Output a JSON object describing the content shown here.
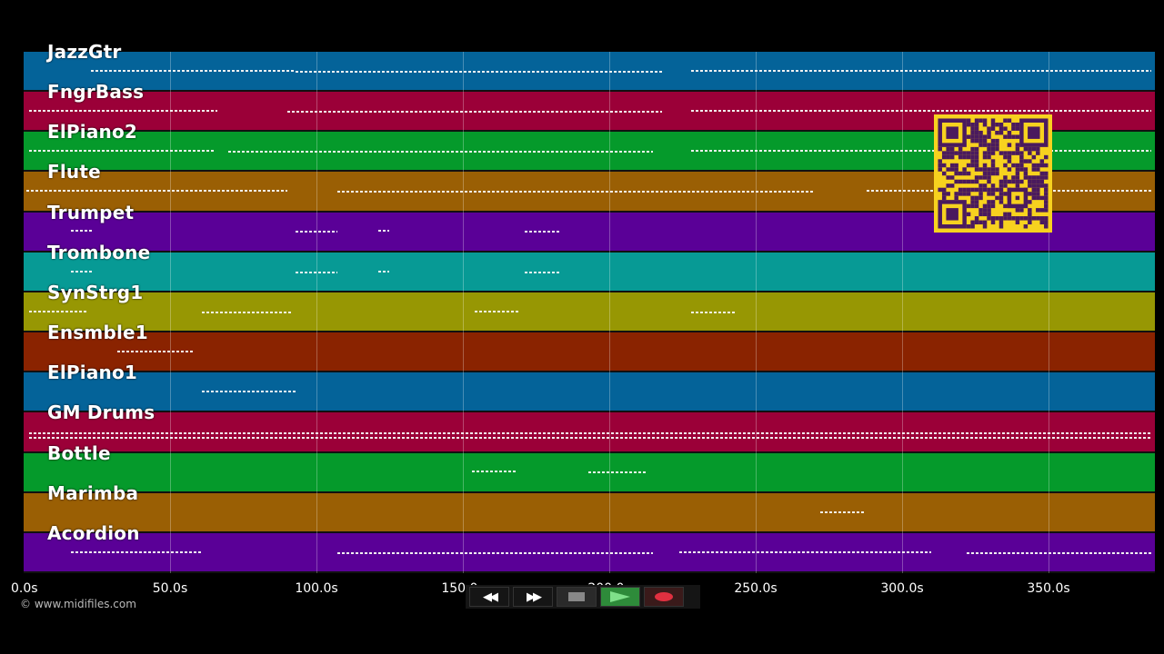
{
  "tracks": [
    {
      "name": "JazzGtr",
      "color": "#046399"
    },
    {
      "name": "FngrBass",
      "color": "#9b0038"
    },
    {
      "name": "ElPiano2",
      "color": "#059a2b"
    },
    {
      "name": "Flute",
      "color": "#9a5f04"
    },
    {
      "name": "Trumpet",
      "color": "#5a0097"
    },
    {
      "name": "Trombone",
      "color": "#079a95"
    },
    {
      "name": "SynStrg1",
      "color": "#979703"
    },
    {
      "name": "Ensmble1",
      "color": "#8a2300"
    },
    {
      "name": "ElPiano1",
      "color": "#046399"
    },
    {
      "name": "GM Drums",
      "color": "#9b0038"
    },
    {
      "name": "Bottle",
      "color": "#059a2b"
    },
    {
      "name": "Marimba",
      "color": "#9a5f04"
    },
    {
      "name": "Acordion",
      "color": "#5a0097"
    }
  ],
  "axis": {
    "ticks": [
      "0.0s",
      "50.0s",
      "100.0s",
      "150.0s",
      "200.0s",
      "250.0s",
      "300.0s",
      "350.0s"
    ],
    "tick_values": [
      0,
      50,
      100,
      150,
      200,
      250,
      300,
      350
    ],
    "max_seconds": 386
  },
  "copyright": "© www.midifiles.com",
  "transport": {
    "rewind_label": "◀◀",
    "forward_label": "▶▶"
  },
  "colors": {
    "background": "#000000",
    "qr_bg": "#f7d21f",
    "qr_fg": "#4a1a5e",
    "play": "#2e8b3a",
    "record": "#e03040"
  },
  "notes": [
    {
      "track": 0,
      "segments": [
        [
          23,
          93
        ],
        [
          93,
          218
        ],
        [
          228,
          385
        ]
      ]
    },
    {
      "track": 1,
      "segments": [
        [
          2,
          66
        ],
        [
          90,
          218
        ],
        [
          228,
          385
        ]
      ]
    },
    {
      "track": 2,
      "segments": [
        [
          2,
          65
        ],
        [
          70,
          215
        ],
        [
          228,
          385
        ]
      ]
    },
    {
      "track": 3,
      "segments": [
        [
          1,
          90
        ],
        [
          107,
          270
        ],
        [
          288,
          385
        ]
      ]
    },
    {
      "track": 4,
      "segments": [
        [
          16,
          24
        ],
        [
          93,
          107
        ],
        [
          121,
          125
        ],
        [
          171,
          183
        ]
      ]
    },
    {
      "track": 5,
      "segments": [
        [
          16,
          24
        ],
        [
          93,
          107
        ],
        [
          121,
          125
        ],
        [
          171,
          183
        ]
      ]
    },
    {
      "track": 6,
      "segments": [
        [
          2,
          22
        ],
        [
          61,
          92
        ],
        [
          154,
          169
        ],
        [
          228,
          243
        ]
      ]
    },
    {
      "track": 7,
      "segments": [
        [
          32,
          58
        ]
      ]
    },
    {
      "track": 8,
      "segments": [
        [
          61,
          93
        ]
      ]
    },
    {
      "track": 9,
      "segments": [
        [
          2,
          385
        ]
      ]
    },
    {
      "track": 10,
      "segments": [
        [
          153,
          168
        ],
        [
          193,
          213
        ]
      ]
    },
    {
      "track": 11,
      "segments": [
        [
          272,
          287
        ]
      ]
    },
    {
      "track": 12,
      "segments": [
        [
          16,
          61
        ],
        [
          107,
          215
        ],
        [
          224,
          310
        ],
        [
          322,
          385
        ]
      ]
    }
  ]
}
